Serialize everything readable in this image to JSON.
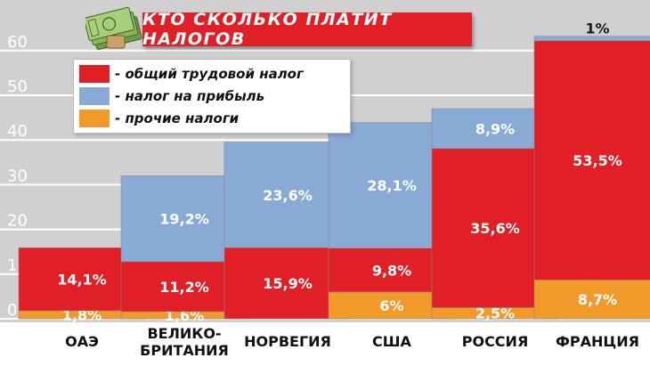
{
  "title": "КТО СКОЛЬКО ПЛАТИТ НАЛОГОВ",
  "icon": "money-stack-icon",
  "colors": {
    "labor": "#e01f26",
    "profit": "#8aaad6",
    "other": "#f19a2a",
    "background": "#d0d0d0",
    "title_bg": "#e01f26"
  },
  "legend": [
    {
      "key": "labor",
      "label": "- общий трудовой налог",
      "color": "#e01f26"
    },
    {
      "key": "profit",
      "label": "- налог на прибыль",
      "color": "#8aaad6"
    },
    {
      "key": "other",
      "label": "- прочие налоги",
      "color": "#f19a2a"
    }
  ],
  "chart_data": {
    "type": "bar",
    "stacked": true,
    "title": "КТО СКОЛЬКО ПЛАТИТ НАЛОГОВ",
    "categories": [
      "ОАЭ",
      "ВЕЛИКО-БРИТАНИЯ",
      "НОРВЕГИЯ",
      "США",
      "РОССИЯ",
      "ФРАНЦИЯ"
    ],
    "category_lines": [
      [
        "ОАЭ"
      ],
      [
        "ВЕЛИКО-",
        "БРИТАНИЯ"
      ],
      [
        "НОРВЕГИЯ"
      ],
      [
        "США"
      ],
      [
        "РОССИЯ"
      ],
      [
        "ФРАНЦИЯ"
      ]
    ],
    "series": [
      {
        "name": "прочие налоги",
        "key": "other",
        "values": [
          1.8,
          1.6,
          0,
          6,
          2.5,
          8.7
        ],
        "labels": [
          "1,8%",
          "1,6%",
          "",
          "6%",
          "2,5%",
          "8,7%"
        ]
      },
      {
        "name": "общий трудовой налог",
        "key": "labor",
        "values": [
          14.1,
          11.2,
          15.9,
          9.8,
          35.6,
          53.5
        ],
        "labels": [
          "14,1%",
          "11,2%",
          "15,9%",
          "9,8%",
          "35,6%",
          "53,5%"
        ]
      },
      {
        "name": "налог на прибыль",
        "key": "profit",
        "values": [
          0,
          19.2,
          23.6,
          28.1,
          8.9,
          1
        ],
        "labels": [
          "",
          "19,2%",
          "23,6%",
          "28,1%",
          "8,9%",
          "1%"
        ]
      }
    ],
    "yticks": [
      0,
      10,
      20,
      30,
      40,
      50,
      60
    ],
    "ylim": [
      0,
      62
    ],
    "grid": true,
    "xlabel": "",
    "ylabel": ""
  }
}
